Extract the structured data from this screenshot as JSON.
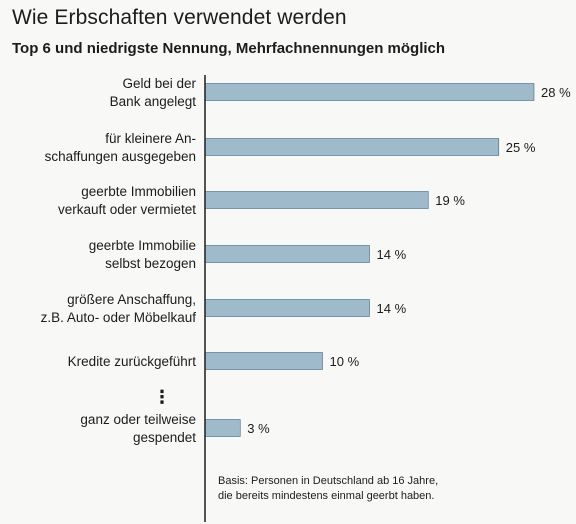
{
  "chart_data": {
    "type": "bar",
    "orientation": "horizontal",
    "title": "Wie Erbschaften verwendet werden",
    "subtitle": "Top 6 und niedrigste Nennung, Mehrfachnennungen möglich",
    "categories": [
      [
        "Geld bei der",
        "Bank angelegt"
      ],
      [
        "für kleinere An-",
        "schaffungen ausgegeben"
      ],
      [
        "geerbte Immobilien",
        "verkauft oder vermietet"
      ],
      [
        "geerbte Immobilie",
        "selbst bezogen"
      ],
      [
        "größere Anschaffung,",
        "z.B. Auto- oder Möbelkauf"
      ],
      [
        "Kredite zurückgeführt"
      ],
      [
        "⋮"
      ],
      [
        "ganz oder teilweise",
        "gespendet"
      ]
    ],
    "values": [
      28,
      25,
      19,
      14,
      14,
      10,
      null,
      3
    ],
    "value_labels": [
      "28 %",
      "25 %",
      "19 %",
      "14 %",
      "14 %",
      "10 %",
      "",
      "3 %"
    ],
    "unit": "%",
    "bar_color": "#9fbacb",
    "bar_edge_color": "#3f6b84",
    "grid": false,
    "footnote": "Basis: Personen in Deutschland ab 16 Jahre,\ndie bereits mindestens einmal geerbt haben."
  }
}
